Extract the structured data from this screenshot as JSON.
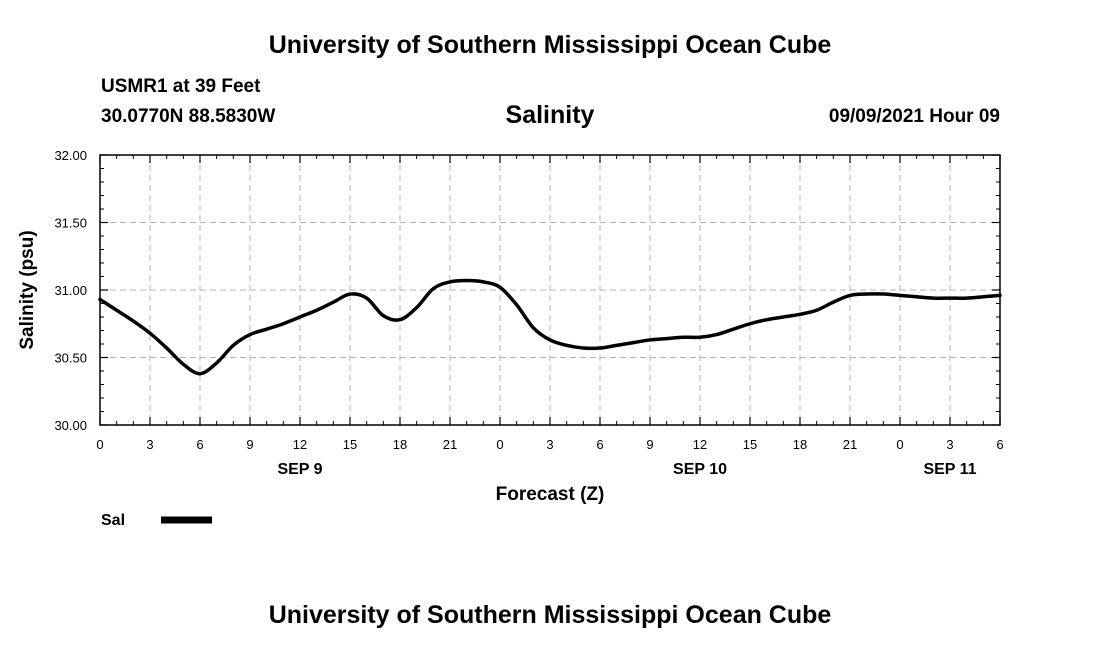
{
  "header": {
    "title_top": "University of Southern Mississippi Ocean Cube",
    "station": "USMR1 at 39 Feet",
    "coords": "30.0770N  88.5830W",
    "chart_title": "Salinity",
    "datetime": "09/09/2021 Hour 09",
    "title_bottom": "University of Southern Mississippi Ocean Cube"
  },
  "legend": {
    "label": "Sal",
    "color": "#000000"
  },
  "chart_data": {
    "type": "line",
    "title": "Salinity",
    "xlabel": "Forecast (Z)",
    "ylabel": "Salinity (psu)",
    "ylim": [
      30.0,
      32.0
    ],
    "yticks": [
      "30.00",
      "30.50",
      "31.00",
      "31.50",
      "32.00"
    ],
    "xlim": [
      0,
      54
    ],
    "xticks": [
      {
        "hour": 0,
        "label": "0"
      },
      {
        "hour": 3,
        "label": "3"
      },
      {
        "hour": 6,
        "label": "6"
      },
      {
        "hour": 9,
        "label": "9"
      },
      {
        "hour": 12,
        "label": "12"
      },
      {
        "hour": 15,
        "label": "15"
      },
      {
        "hour": 18,
        "label": "18"
      },
      {
        "hour": 21,
        "label": "21"
      },
      {
        "hour": 24,
        "label": "0"
      },
      {
        "hour": 27,
        "label": "3"
      },
      {
        "hour": 30,
        "label": "6"
      },
      {
        "hour": 33,
        "label": "9"
      },
      {
        "hour": 36,
        "label": "12"
      },
      {
        "hour": 39,
        "label": "15"
      },
      {
        "hour": 42,
        "label": "18"
      },
      {
        "hour": 45,
        "label": "21"
      },
      {
        "hour": 48,
        "label": "0"
      },
      {
        "hour": 51,
        "label": "3"
      },
      {
        "hour": 54,
        "label": "6"
      }
    ],
    "day_labels": [
      {
        "hour": 12,
        "label": "SEP 9"
      },
      {
        "hour": 36,
        "label": "SEP 10"
      },
      {
        "hour": 51,
        "label": "SEP 11"
      }
    ],
    "grid": true,
    "series": [
      {
        "name": "Sal",
        "x": [
          0,
          1,
          2,
          3,
          4,
          5,
          6,
          7,
          8,
          9,
          10,
          11,
          12,
          13,
          14,
          15,
          16,
          17,
          18,
          19,
          20,
          21,
          22,
          23,
          24,
          25,
          26,
          27,
          28,
          29,
          30,
          31,
          32,
          33,
          34,
          35,
          36,
          37,
          38,
          39,
          40,
          41,
          42,
          43,
          44,
          45,
          46,
          47,
          48,
          49,
          50,
          51,
          52,
          53,
          54
        ],
        "values": [
          30.93,
          30.85,
          30.77,
          30.68,
          30.57,
          30.45,
          30.38,
          30.46,
          30.59,
          30.67,
          30.71,
          30.75,
          30.8,
          30.85,
          30.91,
          30.97,
          30.94,
          30.81,
          30.78,
          30.87,
          31.01,
          31.06,
          31.07,
          31.06,
          31.02,
          30.89,
          30.72,
          30.63,
          30.59,
          30.57,
          30.57,
          30.59,
          30.61,
          30.63,
          30.64,
          30.65,
          30.65,
          30.67,
          30.71,
          30.75,
          30.78,
          30.8,
          30.82,
          30.85,
          30.91,
          30.96,
          30.97,
          30.97,
          30.96,
          30.95,
          30.94,
          30.94,
          30.94,
          30.95,
          30.96
        ]
      }
    ]
  }
}
